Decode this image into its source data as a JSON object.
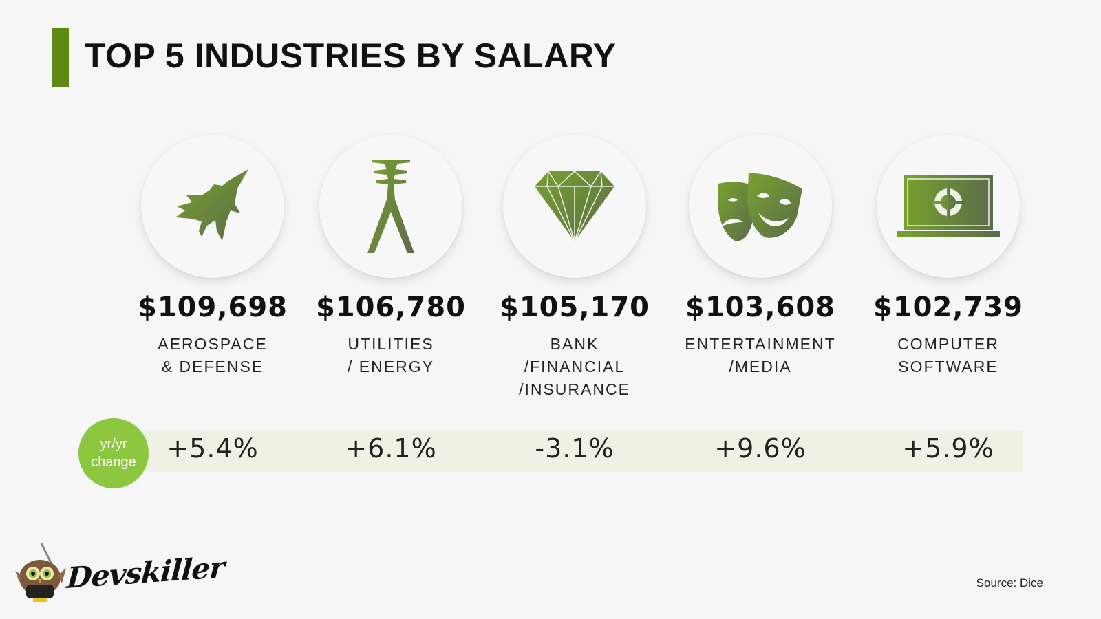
{
  "title": "TOP 5 INDUSTRIES BY SALARY",
  "colors": {
    "accent": "#5e8a12",
    "badge": "#8dc63f",
    "strip": "#eef1e3",
    "icon_from": "#6f9a2a",
    "icon_to": "#5c6b4a"
  },
  "badge": {
    "line1": "yr/yr",
    "line2": "change"
  },
  "industries": [
    {
      "icon": "fighter-jet-icon",
      "salary": "$109,698",
      "name_lines": [
        "AEROSPACE",
        "& DEFENSE"
      ],
      "change": "+5.4%"
    },
    {
      "icon": "power-pylon-icon",
      "salary": "$106,780",
      "name_lines": [
        "UTILITIES",
        "/ ENERGY"
      ],
      "change": "+6.1%"
    },
    {
      "icon": "diamond-icon",
      "salary": "$105,170",
      "name_lines": [
        "BANK",
        "/FINANCIAL",
        "/INSURANCE"
      ],
      "change": "-3.1%"
    },
    {
      "icon": "theater-masks-icon",
      "salary": "$103,608",
      "name_lines": [
        "ENTERTAINMENT",
        "/MEDIA"
      ],
      "change": "+9.6%"
    },
    {
      "icon": "laptop-icon",
      "salary": "$102,739",
      "name_lines": [
        "COMPUTER",
        "SOFTWARE"
      ],
      "change": "+5.9%"
    }
  ],
  "brand": "Devskiller",
  "source": "Source: Dice"
}
